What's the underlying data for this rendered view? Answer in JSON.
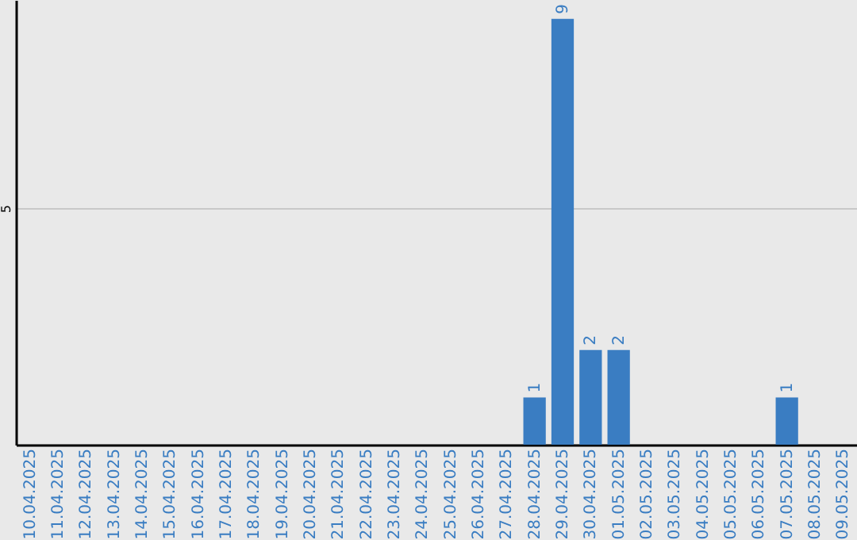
{
  "chart_data": {
    "type": "bar",
    "categories": [
      "10.04.2025",
      "11.04.2025",
      "12.04.2025",
      "13.04.2025",
      "14.04.2025",
      "15.04.2025",
      "16.04.2025",
      "17.04.2025",
      "18.04.2025",
      "19.04.2025",
      "20.04.2025",
      "21.04.2025",
      "22.04.2025",
      "23.04.2025",
      "24.04.2025",
      "25.04.2025",
      "26.04.2025",
      "27.04.2025",
      "28.04.2025",
      "29.04.2025",
      "30.04.2025",
      "01.05.2025",
      "02.05.2025",
      "03.05.2025",
      "04.05.2025",
      "05.05.2025",
      "06.05.2025",
      "07.05.2025",
      "08.05.2025",
      "09.05.2025"
    ],
    "values": [
      null,
      null,
      null,
      null,
      null,
      null,
      null,
      null,
      null,
      null,
      null,
      null,
      null,
      null,
      null,
      null,
      null,
      null,
      1,
      9,
      2,
      2,
      null,
      null,
      null,
      null,
      null,
      1,
      null,
      null
    ],
    "data_labels": true,
    "color": "#3a7dc2",
    "ylim": [
      0,
      9.4
    ],
    "yticks": [
      5
    ],
    "grid": "y"
  }
}
